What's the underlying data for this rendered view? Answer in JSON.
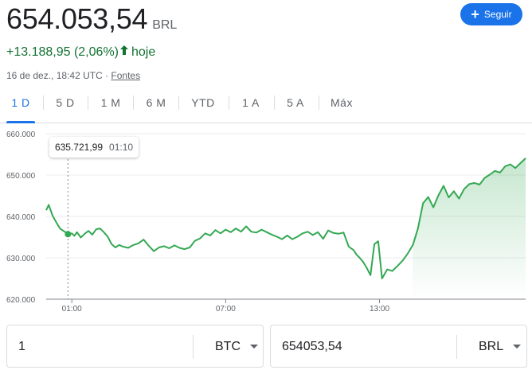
{
  "header": {
    "price": "654.053,54",
    "currency": "BRL",
    "follow_label": "Seguir",
    "change": "+13.188,95 (2,06%)",
    "change_period": "hoje",
    "timestamp": "16 de dez., 18:42 UTC · ",
    "sources_label": "Fontes"
  },
  "tabs": [
    "1 D",
    "5 D",
    "1 M",
    "6 M",
    "YTD",
    "1 A",
    "5 A",
    "Máx"
  ],
  "active_tab": "1 D",
  "tooltip": {
    "value": "635.721,99",
    "time": "01:10"
  },
  "colors": {
    "line": "#34a853",
    "positive": "#137333",
    "accent": "#1a73e8"
  },
  "chart_data": {
    "type": "line",
    "x_unit": "hours UTC",
    "y_ticks": [
      "660.000",
      "650.000",
      "640.000",
      "630.000",
      "620.000"
    ],
    "y_tick_values": [
      660000,
      650000,
      640000,
      630000,
      620000
    ],
    "x_ticks": [
      "01:00",
      "07:00",
      "13:00"
    ],
    "x_tick_values": [
      1,
      7,
      13
    ],
    "ylim": [
      620000,
      660000
    ],
    "xlim": [
      0,
      18.7
    ],
    "grid": true,
    "series": [
      {
        "x": [
          0,
          0.1,
          0.25,
          0.4,
          0.55,
          0.7,
          0.85,
          1,
          1.1,
          1.2,
          1.35,
          1.5,
          1.65,
          1.8,
          1.95,
          2.1,
          2.25,
          2.4,
          2.55,
          2.7,
          2.85,
          3.0,
          3.2,
          3.4,
          3.6,
          3.8,
          4.0,
          4.2,
          4.4,
          4.6,
          4.8,
          5.0,
          5.2,
          5.4,
          5.6,
          5.8,
          6.0,
          6.2,
          6.4,
          6.6,
          6.8,
          7.0,
          7.2,
          7.4,
          7.6,
          7.8,
          8.0,
          8.2,
          8.4,
          8.6,
          8.8,
          9.0,
          9.2,
          9.4,
          9.6,
          9.8,
          10.0,
          10.2,
          10.4,
          10.6,
          10.8,
          11.0,
          11.2,
          11.4,
          11.6,
          11.8,
          12.0,
          12.1,
          12.2,
          12.35,
          12.5,
          12.65,
          12.8,
          12.95,
          13.1,
          13.3,
          13.5,
          13.7,
          13.9,
          14.1,
          14.3,
          14.5,
          14.7,
          14.9,
          15.1,
          15.3,
          15.5,
          15.7,
          15.9,
          16.1,
          16.3,
          16.5,
          16.7,
          16.9,
          17.1,
          17.3,
          17.5,
          17.7,
          17.9,
          18.1,
          18.3,
          18.5,
          18.7
        ],
        "y": [
          641500,
          642800,
          640200,
          638500,
          637000,
          636400,
          635722,
          635900,
          635300,
          636200,
          634900,
          635800,
          636500,
          635600,
          636900,
          637100,
          636200,
          635100,
          633300,
          632500,
          633100,
          632700,
          632400,
          633100,
          633500,
          634400,
          632900,
          631600,
          632500,
          632800,
          632300,
          633000,
          632400,
          632100,
          632500,
          634100,
          634700,
          635900,
          635400,
          636700,
          635900,
          636800,
          636200,
          637100,
          636300,
          637600,
          636300,
          636100,
          636800,
          636200,
          635600,
          635100,
          634500,
          635400,
          634500,
          635100,
          635900,
          636300,
          635500,
          636200,
          634600,
          636600,
          636000,
          635800,
          636100,
          632700,
          631800,
          630800,
          630200,
          629100,
          627600,
          625800,
          633300,
          634000,
          625000,
          627200,
          626800,
          628000,
          629300,
          631000,
          633100,
          637100,
          643200,
          644700,
          642200,
          645100,
          647400,
          644600,
          646100,
          644300,
          646600,
          647800,
          648100,
          647700,
          649300,
          650100,
          651000,
          650600,
          652100,
          652600,
          651700,
          652900,
          654054
        ]
      }
    ]
  },
  "converter": {
    "from_amount": "1",
    "from_currency": "BTC",
    "to_amount": "654053,54",
    "to_currency": "BRL"
  }
}
